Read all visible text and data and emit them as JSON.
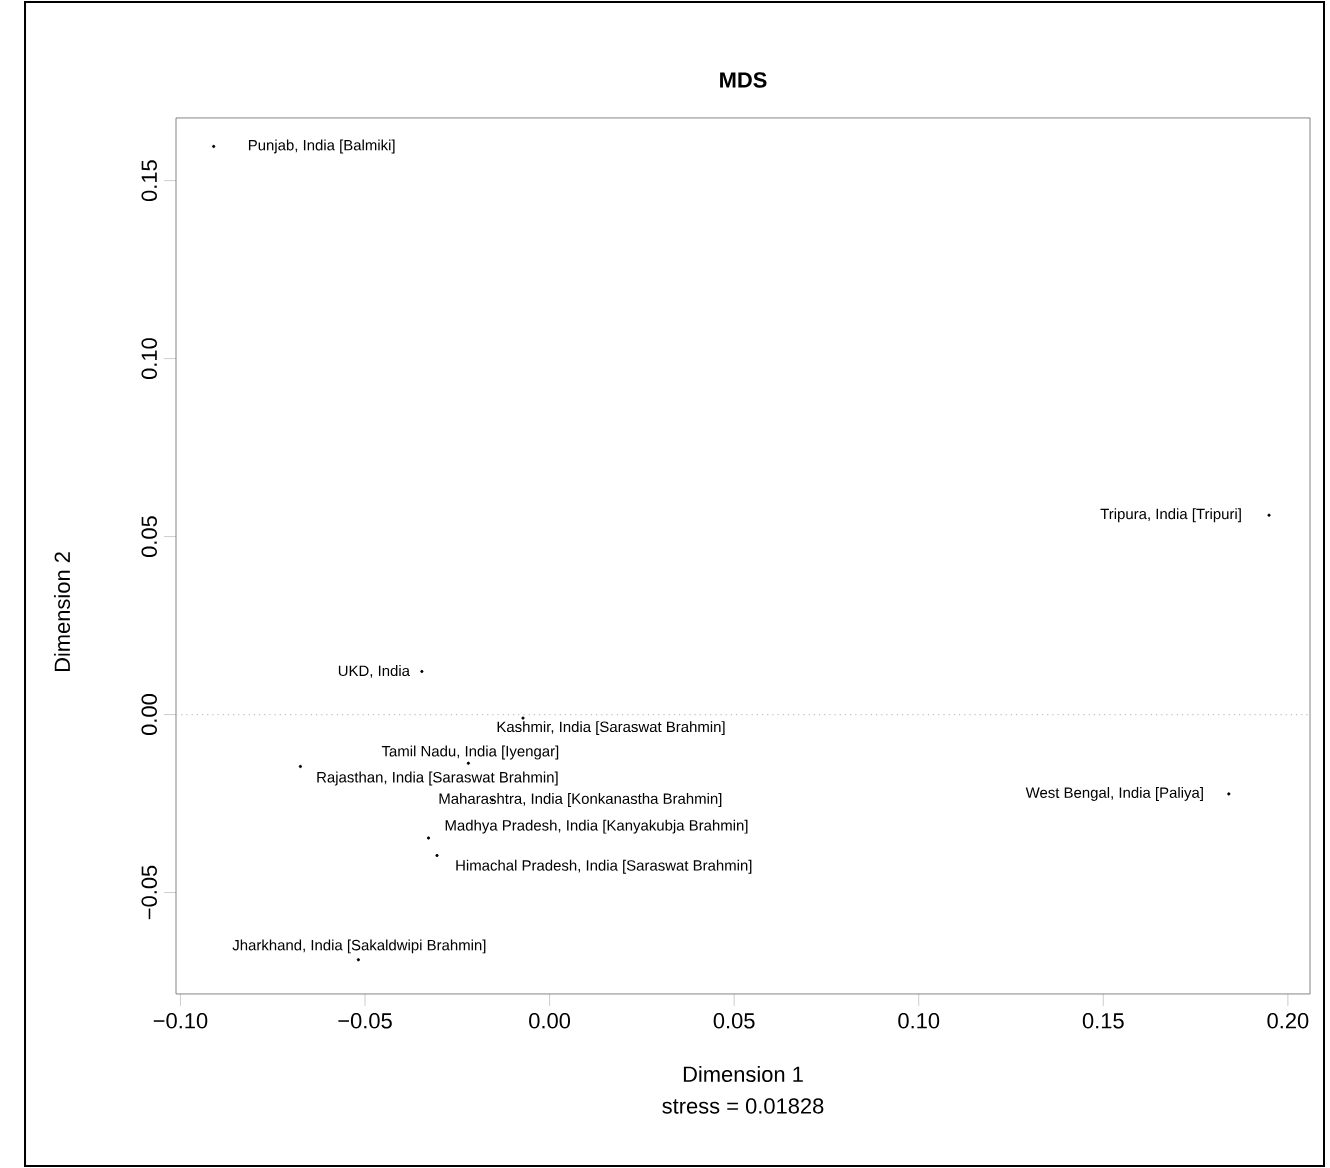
{
  "chart_data": {
    "type": "scatter",
    "title": "MDS",
    "xlabel": "Dimension 1",
    "ylabel": "Dimension 2",
    "x": [
      -0.091,
      0.1949,
      0.184,
      -0.0346,
      -0.0072,
      -0.022,
      -0.0675,
      -0.0155,
      -0.0328,
      -0.0305,
      -0.0518
    ],
    "series": [
      {
        "color": "#000000",
        "values": [
          0.1596,
          0.056,
          -0.0223,
          0.0121,
          -0.001,
          -0.0137,
          -0.0146,
          -0.024,
          -0.0347,
          -0.0396,
          -0.0689
        ]
      }
    ],
    "marker": "circle",
    "xlim": [
      -0.1012,
      0.206
    ],
    "ylim": [
      -0.0785,
      0.1676
    ],
    "xticks": [
      {
        "value": -0.1,
        "label": "−0.10"
      },
      {
        "value": -0.05,
        "label": "−0.05"
      },
      {
        "value": 0,
        "label": "0.00"
      },
      0.05,
      {
        "value": 0.1,
        "label": "0.10"
      },
      0.15,
      {
        "value": 0.2,
        "label": "0.20"
      }
    ],
    "yticks": [
      {
        "value": -0.05,
        "label": "−0.05"
      },
      {
        "value": 0,
        "label": "0.00"
      },
      0.05,
      {
        "value": 0.1,
        "label": "0.10"
      },
      0.15
    ],
    "grid": false,
    "ref_lines": [
      {
        "axis": "y",
        "value": 0,
        "color": "#bfbfbf",
        "line_style": "dotted"
      }
    ],
    "annotations": [
      {
        "text": "Punjab, India [Balmiki]",
        "x": -0.091,
        "y": 0.1596
      },
      {
        "text": "Tripura, India [Tripuri]",
        "x": 0.1949,
        "y": 0.056
      },
      {
        "text": "West Bengal, India [Paliya]",
        "x": 0.184,
        "y": -0.0223
      },
      {
        "text": "UKD, India",
        "x": -0.0346,
        "y": 0.0121
      },
      {
        "text": "Kashmir, India [Saraswat Brahmin]",
        "x": -0.0072,
        "y": -0.001
      },
      {
        "text": "Tamil Nadu, India [Iyengar]",
        "x": -0.022,
        "y": -0.0137
      },
      {
        "text": "Rajasthan, India [Saraswat Brahmin]",
        "x": -0.0675,
        "y": -0.0146
      },
      {
        "text": "Maharashtra, India [Konkanastha Brahmin]",
        "x": -0.0155,
        "y": -0.024
      },
      {
        "text": "Madhya Pradesh, India [Kanyakubja Brahmin]",
        "x": -0.0328,
        "y": -0.0347
      },
      {
        "text": "Himachal Pradesh, India [Saraswat Brahmin]",
        "x": -0.0305,
        "y": -0.0396
      },
      {
        "text": "Jharkhand, India [Sakaldwipi Brahmin]",
        "x": -0.0518,
        "y": -0.0689
      },
      "stress = 0.01828"
    ]
  }
}
